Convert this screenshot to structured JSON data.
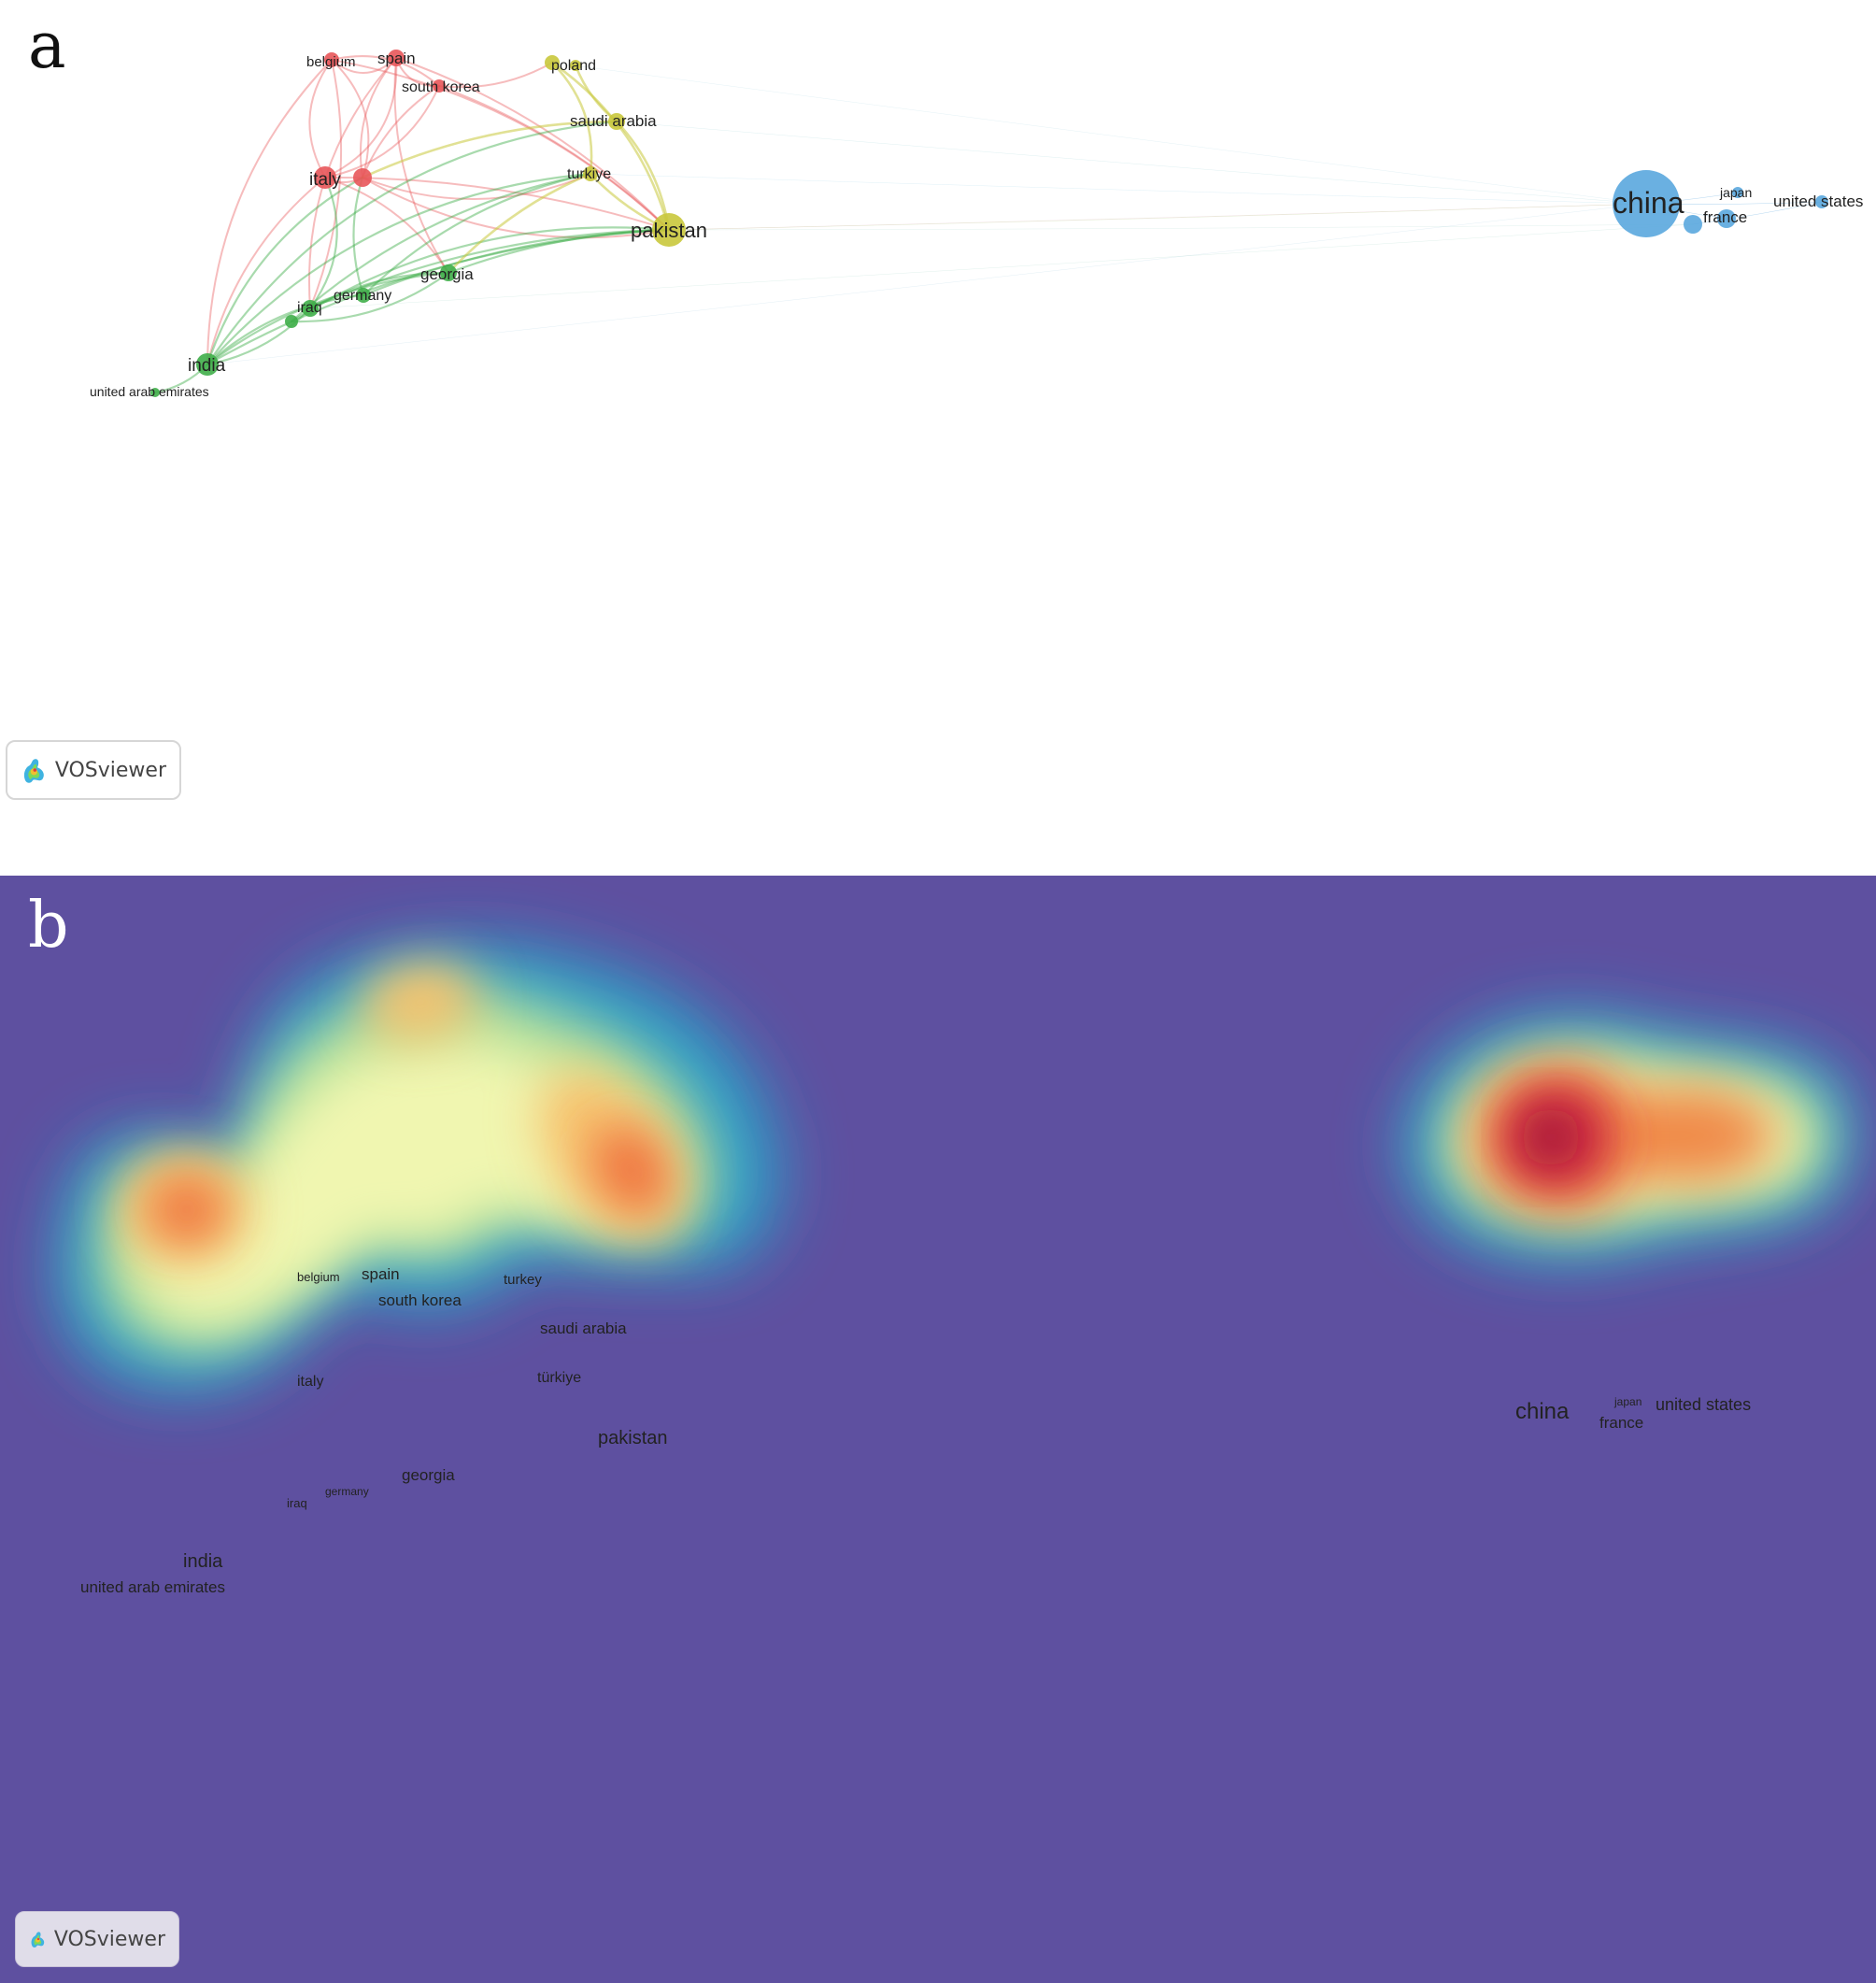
{
  "panel_a": {
    "letter": "a",
    "nodes": [
      {
        "id": "belgium",
        "label": "belgium",
        "cluster": "red"
      },
      {
        "id": "spain",
        "label": "spain",
        "cluster": "red"
      },
      {
        "id": "south_korea",
        "label": "south korea",
        "cluster": "red"
      },
      {
        "id": "italy",
        "label": "italy",
        "cluster": "red"
      },
      {
        "id": "poland",
        "label": "poland",
        "cluster": "yellow"
      },
      {
        "id": "saudi_arabia",
        "label": "saudi arabia",
        "cluster": "yellow"
      },
      {
        "id": "turkiye",
        "label": "turkiye",
        "cluster": "yellow"
      },
      {
        "id": "pakistan",
        "label": "pakistan",
        "cluster": "yellow"
      },
      {
        "id": "georgia",
        "label": "georgia",
        "cluster": "green"
      },
      {
        "id": "germany",
        "label": "germany",
        "cluster": "green"
      },
      {
        "id": "iraq",
        "label": "iraq",
        "cluster": "green"
      },
      {
        "id": "india",
        "label": "india",
        "cluster": "green"
      },
      {
        "id": "uae",
        "label": "united arab emirates",
        "cluster": "green"
      },
      {
        "id": "china",
        "label": "china",
        "cluster": "blue"
      },
      {
        "id": "japan",
        "label": "japan",
        "cluster": "blue"
      },
      {
        "id": "france",
        "label": "france",
        "cluster": "blue"
      },
      {
        "id": "united_states",
        "label": "united states",
        "cluster": "blue"
      }
    ],
    "cluster_colors": {
      "red": "#e8575a",
      "yellow": "#c9c83c",
      "green": "#3fae49",
      "blue": "#5aa7de"
    },
    "watermark": "VOSviewer"
  },
  "panel_b": {
    "letter": "b",
    "labels": [
      {
        "id": "belgium",
        "label": "belgium"
      },
      {
        "id": "spain",
        "label": "spain"
      },
      {
        "id": "south_korea",
        "label": "south korea"
      },
      {
        "id": "turkey",
        "label": "turkey"
      },
      {
        "id": "saudi_arabia",
        "label": "saudi arabia"
      },
      {
        "id": "italy",
        "label": "italy"
      },
      {
        "id": "turkiye",
        "label": "türkiye"
      },
      {
        "id": "pakistan",
        "label": "pakistan"
      },
      {
        "id": "georgia",
        "label": "georgia"
      },
      {
        "id": "germany",
        "label": "germany"
      },
      {
        "id": "iraq",
        "label": "iraq"
      },
      {
        "id": "india",
        "label": "india"
      },
      {
        "id": "uae",
        "label": "united arab emirates"
      },
      {
        "id": "china",
        "label": "china"
      },
      {
        "id": "japan",
        "label": "japan"
      },
      {
        "id": "france",
        "label": "france"
      },
      {
        "id": "united_states",
        "label": "united states"
      }
    ],
    "background_color": "#5e50a0",
    "watermark": "VOSviewer"
  }
}
